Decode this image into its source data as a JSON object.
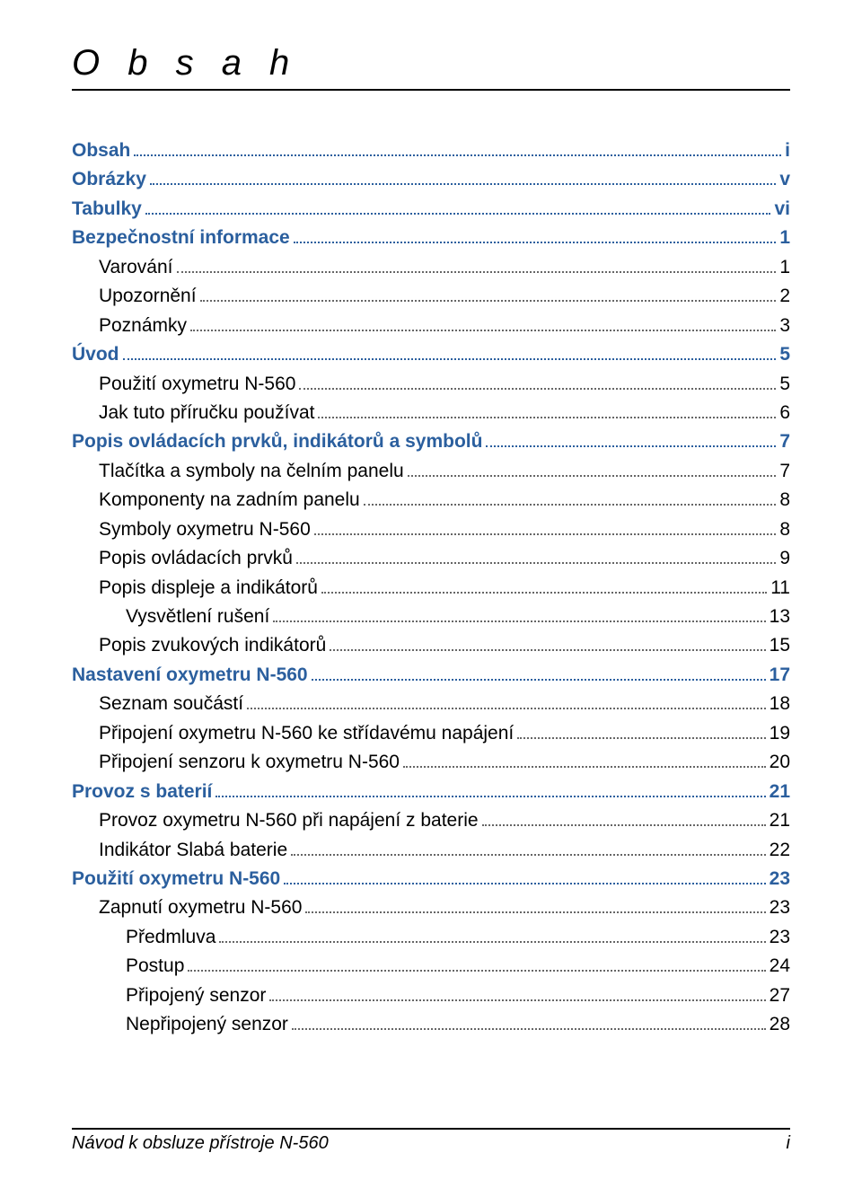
{
  "title": "O b s a h",
  "footer": {
    "left": "Návod k obsluze přístroje N-560",
    "right": "i"
  },
  "colors": {
    "sectionBlue": "#2b5f9e",
    "text": "#000000",
    "bg": "#ffffff"
  },
  "typography": {
    "title_fontsize": 40,
    "line_fontsize": 21,
    "footer_fontsize": 20
  },
  "toc": [
    {
      "level": 0,
      "label": "Obsah",
      "page": "i"
    },
    {
      "level": 0,
      "label": "Obrázky",
      "page": "v"
    },
    {
      "level": 0,
      "label": "Tabulky",
      "page": "vi"
    },
    {
      "level": 0,
      "label": "Bezpečnostní informace",
      "page": "1"
    },
    {
      "level": 1,
      "label": "Varování",
      "page": "1"
    },
    {
      "level": 1,
      "label": "Upozornění",
      "page": "2"
    },
    {
      "level": 1,
      "label": "Poznámky",
      "page": "3"
    },
    {
      "level": 0,
      "label": "Úvod",
      "page": "5"
    },
    {
      "level": 1,
      "label": "Použití oxymetru N-560",
      "page": "5"
    },
    {
      "level": 1,
      "label": "Jak tuto příručku používat",
      "page": "6"
    },
    {
      "level": 0,
      "label": "Popis ovládacích prvků, indikátorů a symbolů",
      "page": "7"
    },
    {
      "level": 1,
      "label": "Tlačítka a symboly na čelním panelu",
      "page": "7"
    },
    {
      "level": 1,
      "label": "Komponenty na zadním panelu",
      "page": "8"
    },
    {
      "level": 1,
      "label": "Symboly oxymetru N-560",
      "page": "8"
    },
    {
      "level": 1,
      "label": "Popis ovládacích prvků",
      "page": "9"
    },
    {
      "level": 1,
      "label": "Popis displeje a indikátorů",
      "page": "11"
    },
    {
      "level": 2,
      "label": "Vysvětlení rušení",
      "page": "13"
    },
    {
      "level": 1,
      "label": "Popis zvukových indikátorů",
      "page": "15"
    },
    {
      "level": 0,
      "label": "Nastavení oxymetru N-560",
      "page": "17"
    },
    {
      "level": 1,
      "label": "Seznam součástí",
      "page": "18"
    },
    {
      "level": 1,
      "label": "Připojení oxymetru N-560 ke střídavému napájení",
      "page": "19"
    },
    {
      "level": 1,
      "label": "Připojení senzoru k oxymetru N-560",
      "page": "20"
    },
    {
      "level": 0,
      "label": "Provoz s baterií",
      "page": "21"
    },
    {
      "level": 1,
      "label": "Provoz oxymetru N-560 při napájení z baterie",
      "page": "21"
    },
    {
      "level": 1,
      "label": "Indikátor Slabá baterie",
      "page": "22"
    },
    {
      "level": 0,
      "label": "Použití oxymetru N-560",
      "page": "23"
    },
    {
      "level": 1,
      "label": "Zapnutí oxymetru N-560",
      "page": "23"
    },
    {
      "level": 2,
      "label": "Předmluva",
      "page": "23"
    },
    {
      "level": 2,
      "label": "Postup",
      "page": "24"
    },
    {
      "level": 2,
      "label": "Připojený senzor",
      "page": "27"
    },
    {
      "level": 2,
      "label": "Nepřipojený senzor",
      "page": "28"
    }
  ]
}
